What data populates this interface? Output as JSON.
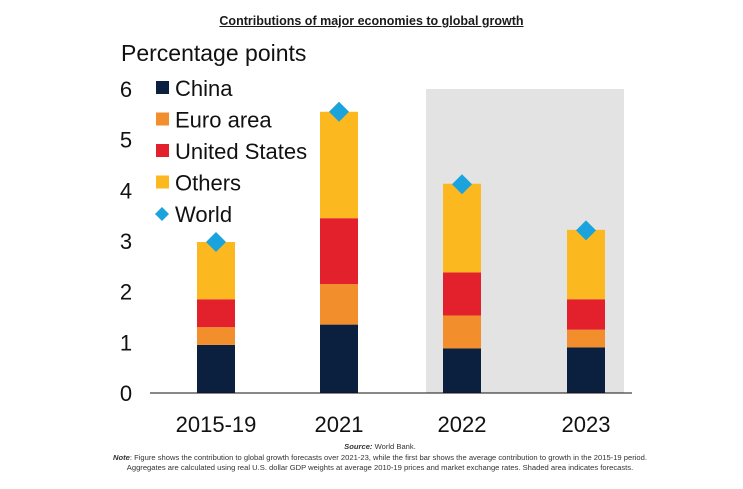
{
  "title": "Contributions of major economies to global growth",
  "chart_data": {
    "type": "bar",
    "stacked": true,
    "ylabel": "Percentage points",
    "ylim": [
      0,
      6
    ],
    "yticks": [
      "0",
      "1",
      "2",
      "3",
      "4",
      "5",
      "6"
    ],
    "categories": [
      "2015-19",
      "2021",
      "2022",
      "2023"
    ],
    "series": [
      {
        "name": "China",
        "color": "#0b1f3f",
        "values": [
          0.95,
          1.35,
          0.88,
          0.9
        ]
      },
      {
        "name": "Euro area",
        "color": "#f28e2b",
        "values": [
          0.35,
          0.8,
          0.65,
          0.35
        ]
      },
      {
        "name": "United States",
        "color": "#e3212d",
        "values": [
          0.55,
          1.3,
          0.85,
          0.6
        ]
      },
      {
        "name": "Others",
        "color": "#fbb91f",
        "values": [
          1.13,
          2.1,
          1.75,
          1.37
        ]
      }
    ],
    "world": {
      "name": "World",
      "color": "#1aa3dc",
      "values": [
        2.98,
        5.55,
        4.12,
        3.21
      ]
    },
    "forecast_shaded_categories": [
      "2022",
      "2023"
    ],
    "shade_color": "#e3e3e3",
    "legend_position": "top-left",
    "grid": false
  },
  "footer": {
    "source_label": "Source:",
    "source_text": "World Bank.",
    "note_label": "Note",
    "note_text": ": Figure shows the contribution to global growth forecasts over 2021-23, while the first bar shows the average contribution to growth in the 2015-19 period. Aggregates are calculated using real U.S. dollar GDP weights at average 2010-19 prices and market exchange rates. Shaded area indicates forecasts."
  }
}
